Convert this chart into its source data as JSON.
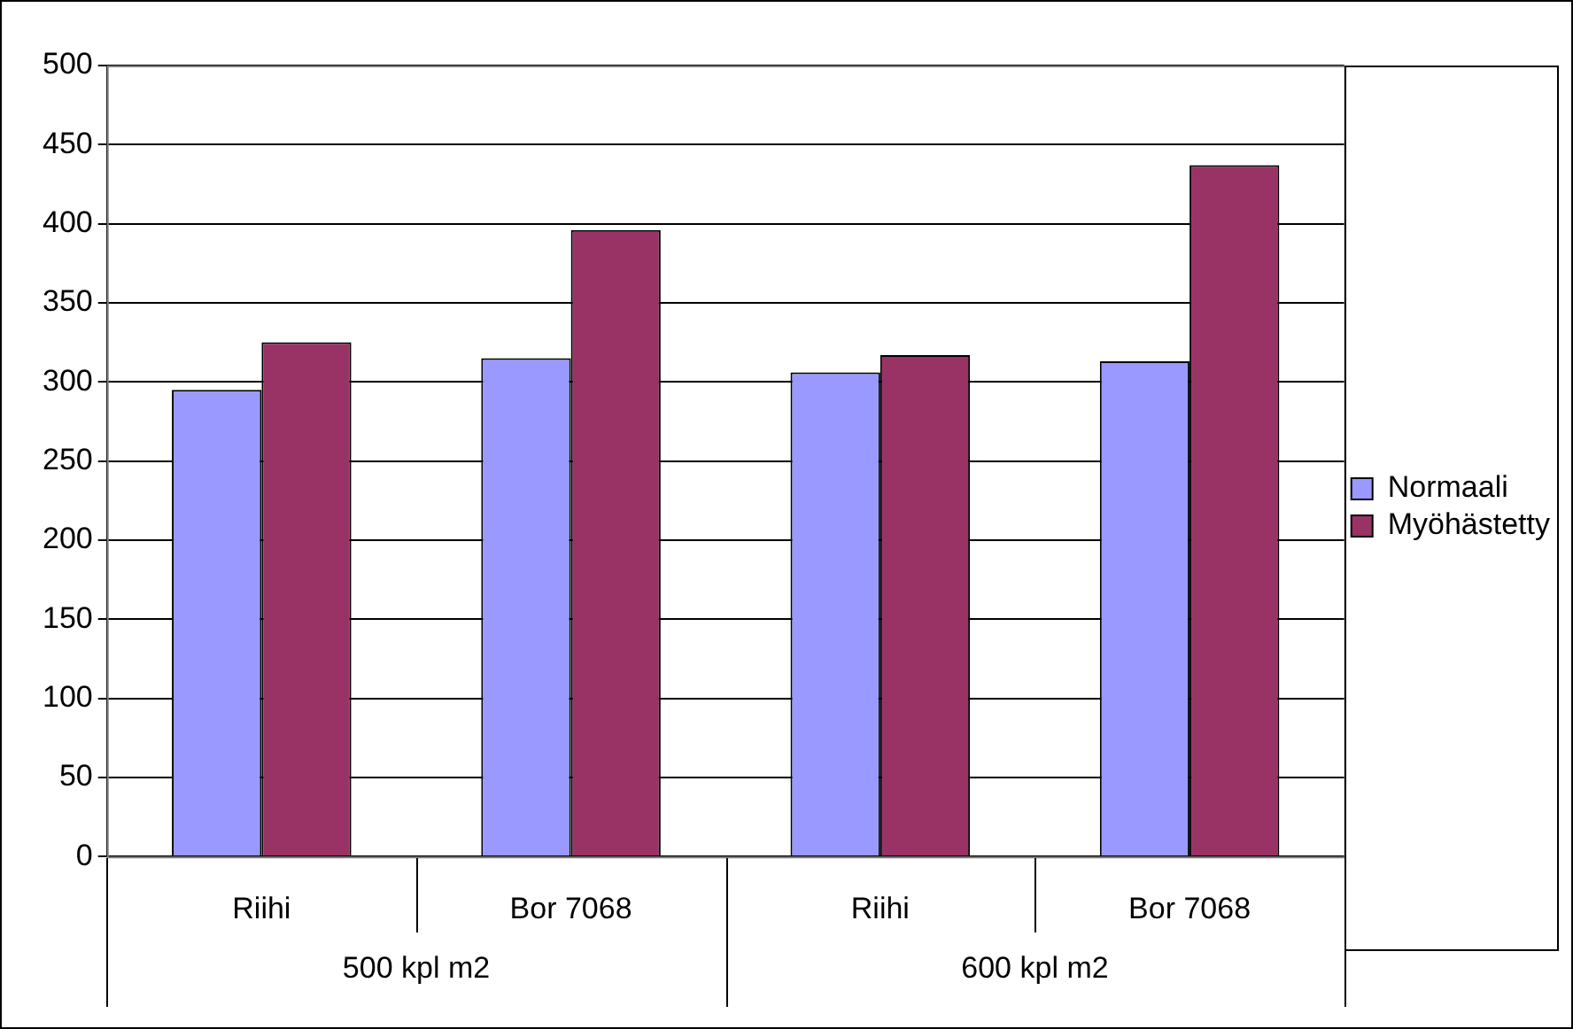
{
  "chart_data": {
    "type": "bar",
    "categories": [
      "Riihi",
      "Bor 7068",
      "Riihi",
      "Bor 7068"
    ],
    "series": [
      {
        "name": "Normaali",
        "color": "#9999ff",
        "values": [
          295,
          315,
          306,
          313
        ]
      },
      {
        "name": "Myöhästetty",
        "color": "#993366",
        "values": [
          325,
          396,
          317,
          437
        ]
      }
    ],
    "annotations": [
      "500 kpl m2",
      "600 kpl m2"
    ],
    "ylim": [
      0,
      500
    ],
    "yticks": [
      0,
      50,
      100,
      150,
      200,
      250,
      300,
      350,
      400,
      450,
      500
    ],
    "grid": "y",
    "legend": "right"
  }
}
